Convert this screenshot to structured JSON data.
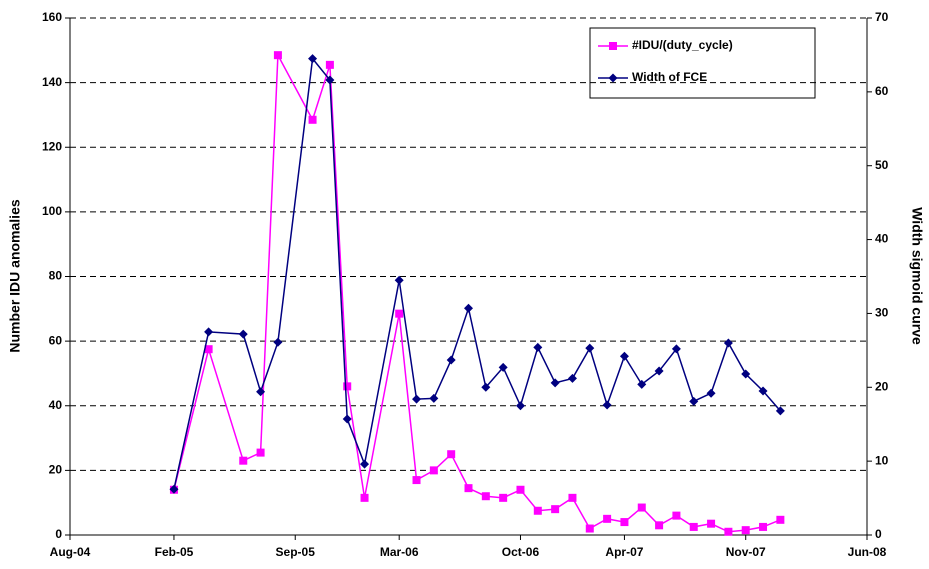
{
  "chart_data": {
    "type": "line",
    "x": [
      "2005-02",
      "2005-04",
      "2005-06",
      "2005-07",
      "2005-08",
      "2005-10",
      "2005-11",
      "2005-12",
      "2006-01",
      "2006-03",
      "2006-04",
      "2006-05",
      "2006-06",
      "2006-07",
      "2006-08",
      "2006-09",
      "2006-10",
      "2006-11",
      "2006-12",
      "2007-01",
      "2007-02",
      "2007-03",
      "2007-04",
      "2007-05",
      "2007-06",
      "2007-07",
      "2007-08",
      "2007-09",
      "2007-10",
      "2007-11",
      "2007-12",
      "2008-01"
    ],
    "xlim": [
      "2004-08",
      "2008-06"
    ],
    "xticks": [
      {
        "value": "2004-08",
        "label": "Aug-04"
      },
      {
        "value": "2005-02",
        "label": "Feb-05"
      },
      {
        "value": "2005-09",
        "label": "Sep-05"
      },
      {
        "value": "2006-03",
        "label": "Mar-06"
      },
      {
        "value": "2006-10",
        "label": "Oct-06"
      },
      {
        "value": "2007-04",
        "label": "Apr-07"
      },
      {
        "value": "2007-11",
        "label": "Nov-07"
      },
      {
        "value": "2008-06",
        "label": "Jun-08"
      }
    ],
    "y_label": "Number IDU anomalies",
    "y2_label": "Width sigmoid curve",
    "ylim": [
      0,
      160
    ],
    "yticks": [
      0,
      20,
      40,
      60,
      80,
      100,
      120,
      140,
      160
    ],
    "y2lim": [
      0,
      70
    ],
    "y2ticks": [
      0,
      10,
      20,
      30,
      40,
      50,
      60,
      70
    ],
    "grid": true,
    "legend": "top-right",
    "series": [
      {
        "name": "#IDU/(duty_cycle)",
        "color": "#ff00ff",
        "marker": "square",
        "values": [
          14,
          57.5,
          23,
          25.5,
          148.5,
          128.5,
          145.5,
          46,
          11.5,
          68.5,
          17,
          20,
          25,
          14.5,
          12,
          11.5,
          14,
          7.5,
          8,
          11.5,
          2,
          5,
          4,
          8.5,
          3,
          6,
          2.5,
          3.5,
          1,
          1.5,
          2.5,
          4.7
        ]
      },
      {
        "name": "Width of FCE",
        "color": "#000080",
        "marker": "diamond",
        "axis": "y2",
        "values": [
          6.2,
          27.5,
          27.2,
          19.4,
          26.1,
          64.5,
          61.6,
          15.7,
          9.6,
          34.5,
          18.4,
          18.5,
          23.7,
          30.7,
          20,
          22.7,
          17.5,
          25.4,
          20.6,
          21.2,
          25.3,
          17.6,
          24.2,
          20.4,
          22.2,
          25.2,
          18.1,
          19.2,
          26,
          21.8,
          19.5,
          16.8
        ]
      }
    ]
  }
}
